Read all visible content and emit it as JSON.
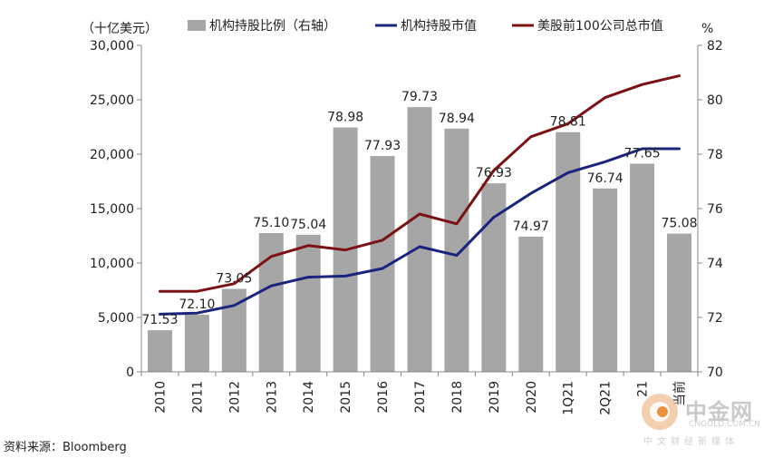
{
  "chart_data": {
    "type": "bar",
    "left_axis_unit": "（十亿美元）",
    "right_axis_unit": "%",
    "categories": [
      "2010",
      "2011",
      "2012",
      "2013",
      "2014",
      "2015",
      "2016",
      "2017",
      "2018",
      "2019",
      "2020",
      "1Q21",
      "2Q21",
      "3Q21",
      "当前"
    ],
    "category_labels": [
      "2010",
      "2011",
      "2012",
      "2013",
      "2014",
      "2015",
      "2016",
      "2017",
      "2018",
      "2019",
      "2020",
      "1Q21",
      "2Q21",
      "21",
      "当前"
    ],
    "left_ticks": [
      "0",
      "5,000",
      "10,000",
      "15,000",
      "20,000",
      "25,000",
      "30,000"
    ],
    "right_ticks": [
      "70",
      "72",
      "74",
      "76",
      "78",
      "80",
      "82"
    ],
    "ylim_left": [
      0,
      30000
    ],
    "ylim_right": [
      70,
      82
    ],
    "legend": [
      "机构持股比例（右轴）",
      "机构持股市值",
      "美股前100公司总市值"
    ],
    "series": [
      {
        "name": "机构持股比例（右轴）",
        "kind": "bar",
        "axis": "right",
        "color": "#a6a6a6",
        "values": [
          71.53,
          72.1,
          73.05,
          75.1,
          75.04,
          78.98,
          77.93,
          79.73,
          78.94,
          76.93,
          74.97,
          78.81,
          76.74,
          77.65,
          75.08
        ],
        "labels": [
          "71.53",
          "72.10",
          "73.05",
          "75.10",
          "75.04",
          "78.98",
          "77.93",
          "79.73",
          "78.94",
          "76.93",
          "74.97",
          "78.81",
          "76.74",
          "77.65",
          "75.08"
        ]
      },
      {
        "name": "机构持股市值",
        "kind": "line",
        "axis": "left",
        "color": "#1a237e",
        "values": [
          5300,
          5400,
          6100,
          7900,
          8700,
          8800,
          9500,
          11500,
          10700,
          14200,
          16400,
          18300,
          19300,
          20500,
          20500
        ]
      },
      {
        "name": "美股前100公司总市值",
        "kind": "line",
        "axis": "left",
        "color": "#7b1113",
        "values": [
          7400,
          7400,
          8100,
          10600,
          11600,
          11200,
          12100,
          14500,
          13600,
          18500,
          21600,
          22800,
          25200,
          26400,
          27200
        ]
      }
    ]
  },
  "source": "资料来源：Bloomberg",
  "watermark": {
    "main": "中金网",
    "en": "CNGOLD.COM.CN",
    "tag": "中文财经新媒体"
  }
}
